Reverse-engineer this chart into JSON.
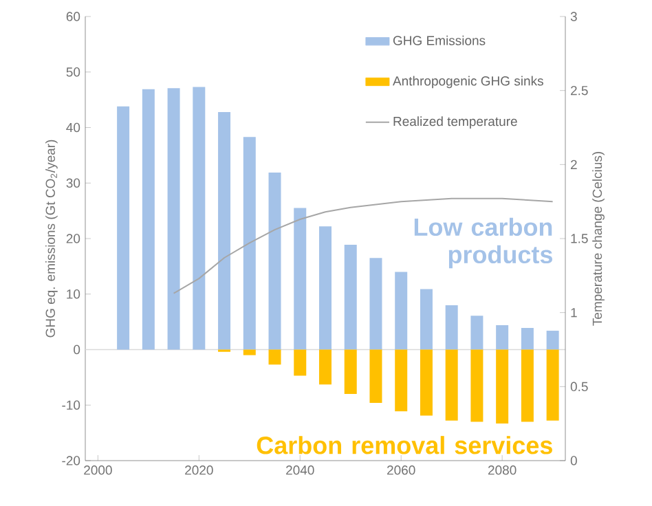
{
  "chart_data": {
    "type": "bar",
    "ylabel": "GHG eq. emissions  (Gt CO$_{2}$/year)",
    "y2label": "Temperature change (Celcius)",
    "x": [
      2005,
      2010,
      2015,
      2020,
      2025,
      2030,
      2035,
      2040,
      2045,
      2050,
      2055,
      2060,
      2065,
      2070,
      2075,
      2080,
      2085,
      2090
    ],
    "xlim": [
      1997.5,
      2092.5
    ],
    "xticks": [
      2000,
      2020,
      2040,
      2060,
      2080
    ],
    "ylim": [
      -20,
      60
    ],
    "yticks": [
      -20,
      -10,
      0,
      10,
      20,
      30,
      40,
      50,
      60
    ],
    "y2lim": [
      0,
      3
    ],
    "y2ticks": [
      0,
      0.5,
      1,
      1.5,
      2,
      2.5,
      3
    ],
    "legend": "top right",
    "stacked": true,
    "ref_lines": [
      {
        "axis": "y",
        "value": 0,
        "color": "#d9d9d9"
      }
    ],
    "series": [
      {
        "name": "GHG Emissions",
        "color": "#a4c2e8",
        "values": [
          43.8,
          46.9,
          47.1,
          47.3,
          42.8,
          38.3,
          31.9,
          25.5,
          22.2,
          18.9,
          16.5,
          14.0,
          10.9,
          8.0,
          6.1,
          4.4,
          3.9,
          3.4
        ]
      },
      {
        "name": "Anthropogenic GHG sinks",
        "color": "#ffc000",
        "values": [
          null,
          null,
          null,
          null,
          -0.4,
          -1.0,
          -2.7,
          -4.7,
          -6.3,
          -8.0,
          -9.6,
          -11.1,
          -11.9,
          -12.8,
          -13.0,
          -13.3,
          -13.0,
          -12.8
        ]
      },
      {
        "name": "Realized temperature",
        "type": "line",
        "axis": "y2",
        "color": "#a6a6a6",
        "x": [
          2015,
          2020,
          2025,
          2030,
          2035,
          2040,
          2045,
          2050,
          2055,
          2060,
          2065,
          2070,
          2075,
          2080,
          2085,
          2090
        ],
        "values": [
          1.13,
          1.23,
          1.37,
          1.47,
          1.56,
          1.63,
          1.68,
          1.71,
          1.73,
          1.75,
          1.76,
          1.77,
          1.77,
          1.77,
          1.76,
          1.75
        ]
      }
    ],
    "annotations": [
      "Low carbon products",
      "Carbon removal services"
    ]
  }
}
